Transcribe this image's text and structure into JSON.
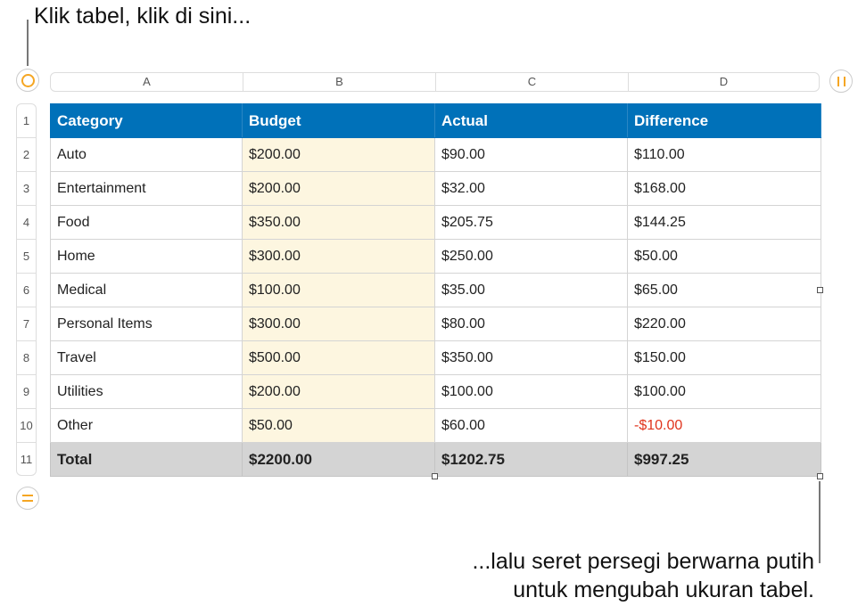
{
  "callouts": {
    "top": "Klik tabel, klik di sini...",
    "bottom_line1": "...lalu seret persegi berwarna putih",
    "bottom_line2": "untuk mengubah ukuran tabel."
  },
  "colors": {
    "header": "#0071b9",
    "budget_fill": "#fdf6e0",
    "total_fill": "#d4d4d4",
    "negative": "#e0331c",
    "control_accent": "#f5a623"
  },
  "column_labels": [
    "A",
    "B",
    "C",
    "D"
  ],
  "row_labels": [
    "1",
    "2",
    "3",
    "4",
    "5",
    "6",
    "7",
    "8",
    "9",
    "10",
    "11"
  ],
  "table": {
    "headers": [
      "Category",
      "Budget",
      "Actual",
      "Difference"
    ],
    "rows": [
      [
        "Auto",
        "$200.00",
        "$90.00",
        "$110.00"
      ],
      [
        "Entertainment",
        "$200.00",
        "$32.00",
        "$168.00"
      ],
      [
        "Food",
        "$350.00",
        "$205.75",
        "$144.25"
      ],
      [
        "Home",
        "$300.00",
        "$250.00",
        "$50.00"
      ],
      [
        "Medical",
        "$100.00",
        "$35.00",
        "$65.00"
      ],
      [
        "Personal Items",
        "$300.00",
        "$80.00",
        "$220.00"
      ],
      [
        "Travel",
        "$500.00",
        "$350.00",
        "$150.00"
      ],
      [
        "Utilities",
        "$200.00",
        "$100.00",
        "$100.00"
      ],
      [
        "Other",
        "$50.00",
        "$60.00",
        "-$10.00"
      ]
    ],
    "total": [
      "Total",
      "$2200.00",
      "$1202.75",
      "$997.25"
    ]
  },
  "icons": {
    "select_table": "circle-icon",
    "columns": "pause-bars-icon",
    "rows": "equals-icon"
  }
}
